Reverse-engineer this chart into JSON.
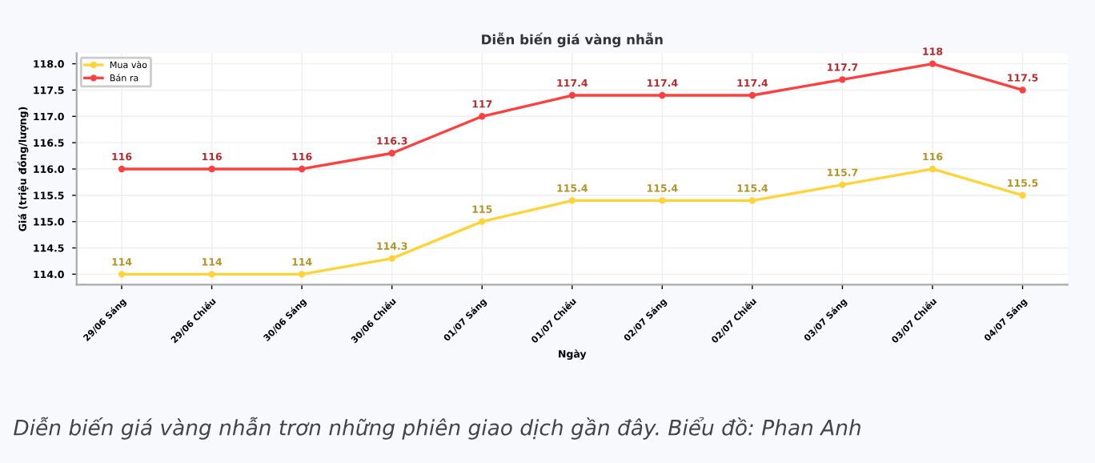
{
  "chart_data": {
    "type": "line",
    "title": "Diễn biến giá vàng nhẫn",
    "xlabel": "Ngày",
    "ylabel": "Giá (triệu đồng/lượng)",
    "categories": [
      "29/06 Sáng",
      "29/06 Chiều",
      "30/06 Sáng",
      "30/06 Chiều",
      "01/07 Sáng",
      "01/07 Chiều",
      "02/07 Sáng",
      "02/07 Chiều",
      "03/07 Sáng",
      "03/07 Chiều",
      "04/07 Sáng"
    ],
    "series": [
      {
        "name": "Mua vào",
        "color": "#ffd43b",
        "values": [
          114,
          114,
          114,
          114.3,
          115,
          115.4,
          115.4,
          115.4,
          115.7,
          116,
          115.5
        ]
      },
      {
        "name": "Bán ra",
        "color": "#ff4040",
        "values": [
          116,
          116,
          116,
          116.3,
          117,
          117.4,
          117.4,
          117.4,
          117.7,
          118,
          117.5
        ]
      }
    ],
    "ylim": [
      113.8,
      118.2
    ],
    "yticks": [
      {
        "value": 114,
        "label": "114.0"
      },
      {
        "value": 114.5,
        "label": "114.5"
      },
      {
        "value": 115,
        "label": "115.0"
      },
      {
        "value": 115.5,
        "label": "115.5"
      },
      {
        "value": 116,
        "label": "116.0"
      },
      {
        "value": 116.5,
        "label": "116.5"
      },
      {
        "value": 117,
        "label": "117.0"
      },
      {
        "value": 117.5,
        "label": "117.5"
      },
      {
        "value": 118,
        "label": "118.0"
      }
    ],
    "grid": true,
    "legend": "top left",
    "marker": "circle",
    "line_style": "solid",
    "data_labels": true,
    "annotations": [
      "Diễn biến giá vàng nhẫn trơn những phiên giao dịch gần đây. Biểu đồ: Phan Anh"
    ]
  }
}
